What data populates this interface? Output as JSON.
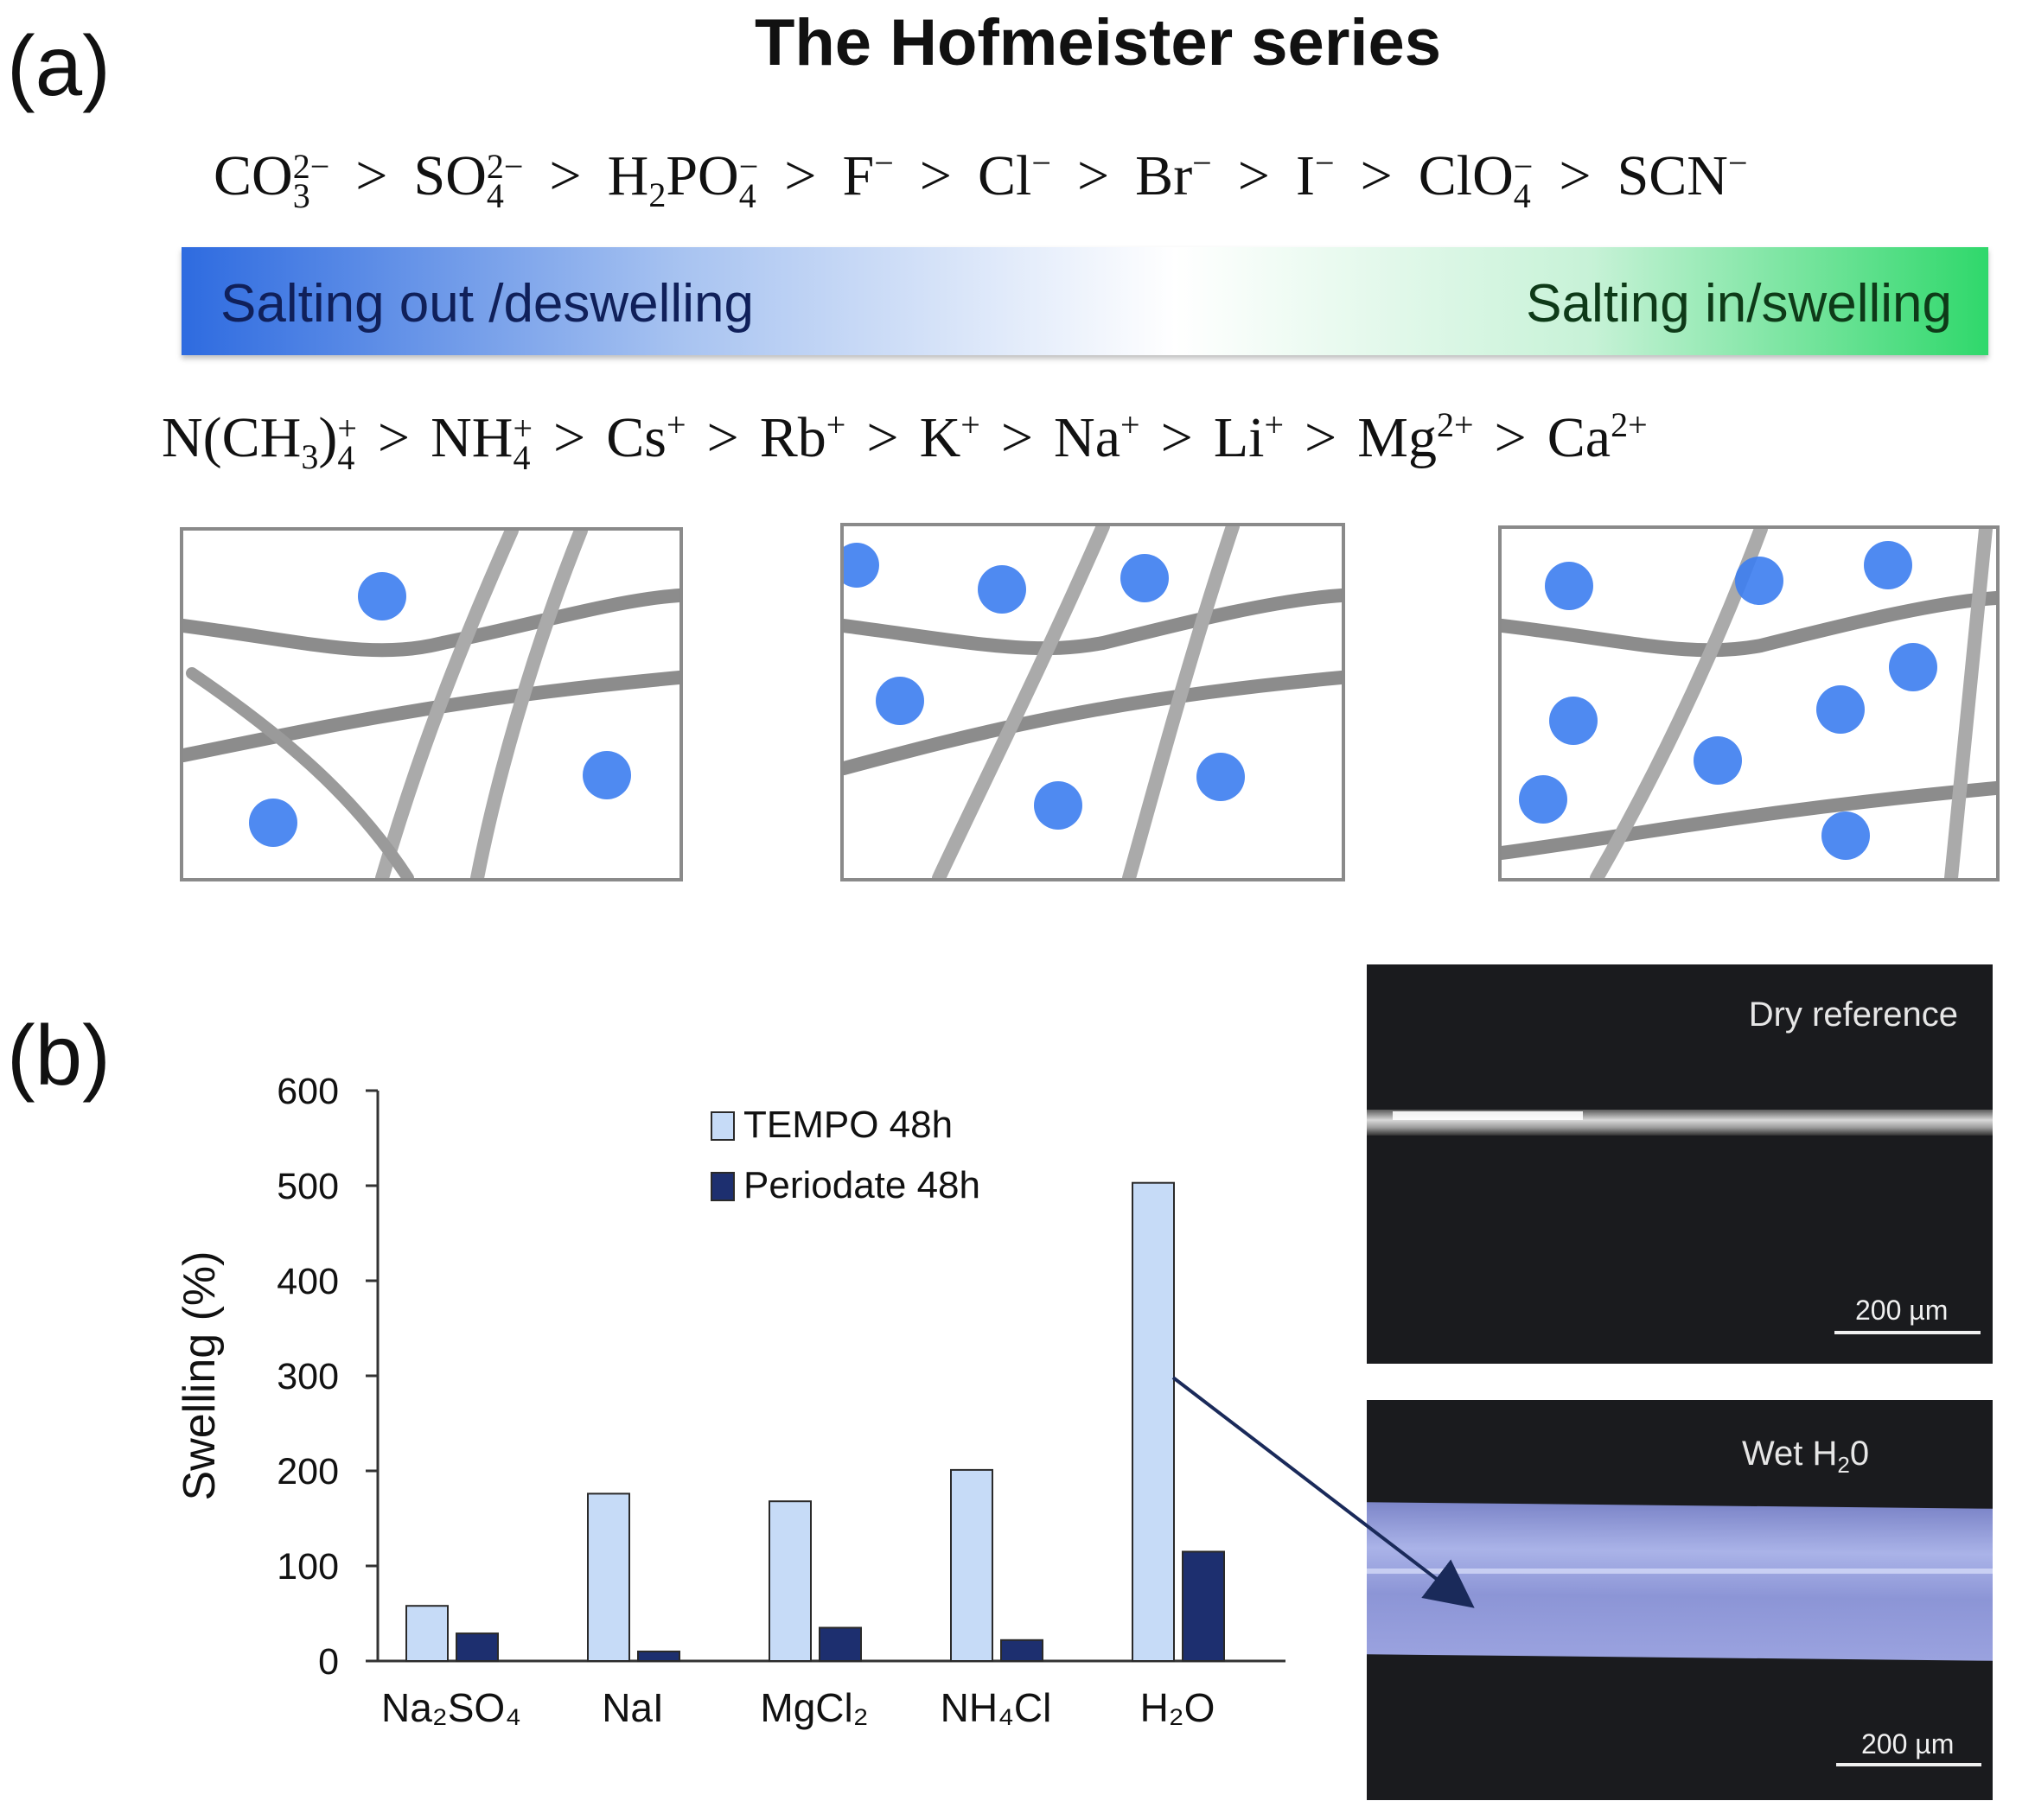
{
  "panels": {
    "a": "(a)",
    "b": "(b)"
  },
  "title": "The Hofmeister series",
  "anions": [
    {
      "base": "CO",
      "sub": "3",
      "sup": "2−"
    },
    {
      "base": "SO",
      "sub": "4",
      "sup": "2−"
    },
    {
      "base": "H",
      "sub": "2",
      "base2": "PO",
      "sub2": "4",
      "sup": "−"
    },
    {
      "base": "F",
      "sup": "−"
    },
    {
      "base": "Cl",
      "sup": "−"
    },
    {
      "base": "Br",
      "sup": "−"
    },
    {
      "base": "I",
      "sup": "−"
    },
    {
      "base": "ClO",
      "sub": "4",
      "sup": "−"
    },
    {
      "base": "SCN",
      "sup": "−"
    }
  ],
  "cations": [
    {
      "base": "N(CH",
      "sub": "3",
      "base2": ")",
      "sub2": "4",
      "sup": "+"
    },
    {
      "base": "NH",
      "sub": "4",
      "sup": "+"
    },
    {
      "base": "Cs",
      "sup": "+"
    },
    {
      "base": "Rb",
      "sup": "+"
    },
    {
      "base": "K",
      "sup": "+"
    },
    {
      "base": "Na",
      "sup": "+"
    },
    {
      "base": "Li",
      "sup": "+"
    },
    {
      "base": "Mg",
      "sup": "2+"
    },
    {
      "base": "Ca",
      "sup": "2+"
    }
  ],
  "separator": ">",
  "bar": {
    "left_label": "Salting out /deswelling",
    "right_label": "Salting in/swelling"
  },
  "colors": {
    "tempo": "#c6dbf7",
    "periodate": "#1d2f6f",
    "dot": "#3c7df0",
    "fiber": "#8c8c8c"
  },
  "chart_data": {
    "type": "bar",
    "categories": [
      "Na₂SO₄",
      "NaI",
      "MgCl₂",
      "NH₄Cl",
      "H₂O"
    ],
    "series": [
      {
        "name": "TEMPO 48h",
        "values": [
          58,
          176,
          168,
          201,
          503
        ]
      },
      {
        "name": "Periodate 48h",
        "values": [
          29,
          10,
          35,
          22,
          115
        ]
      }
    ],
    "ylabel": "Swelling (%)",
    "ylim": [
      0,
      600
    ],
    "yticks": [
      0,
      100,
      200,
      300,
      400,
      500,
      600
    ],
    "grid": false,
    "legend": "top-center"
  },
  "micrographs": {
    "dry": {
      "label": "Dry reference",
      "scale": "200 µm"
    },
    "wet": {
      "label": "Wet H",
      "label_sub": "2",
      "label_end": "0",
      "scale": "200 µm"
    }
  }
}
